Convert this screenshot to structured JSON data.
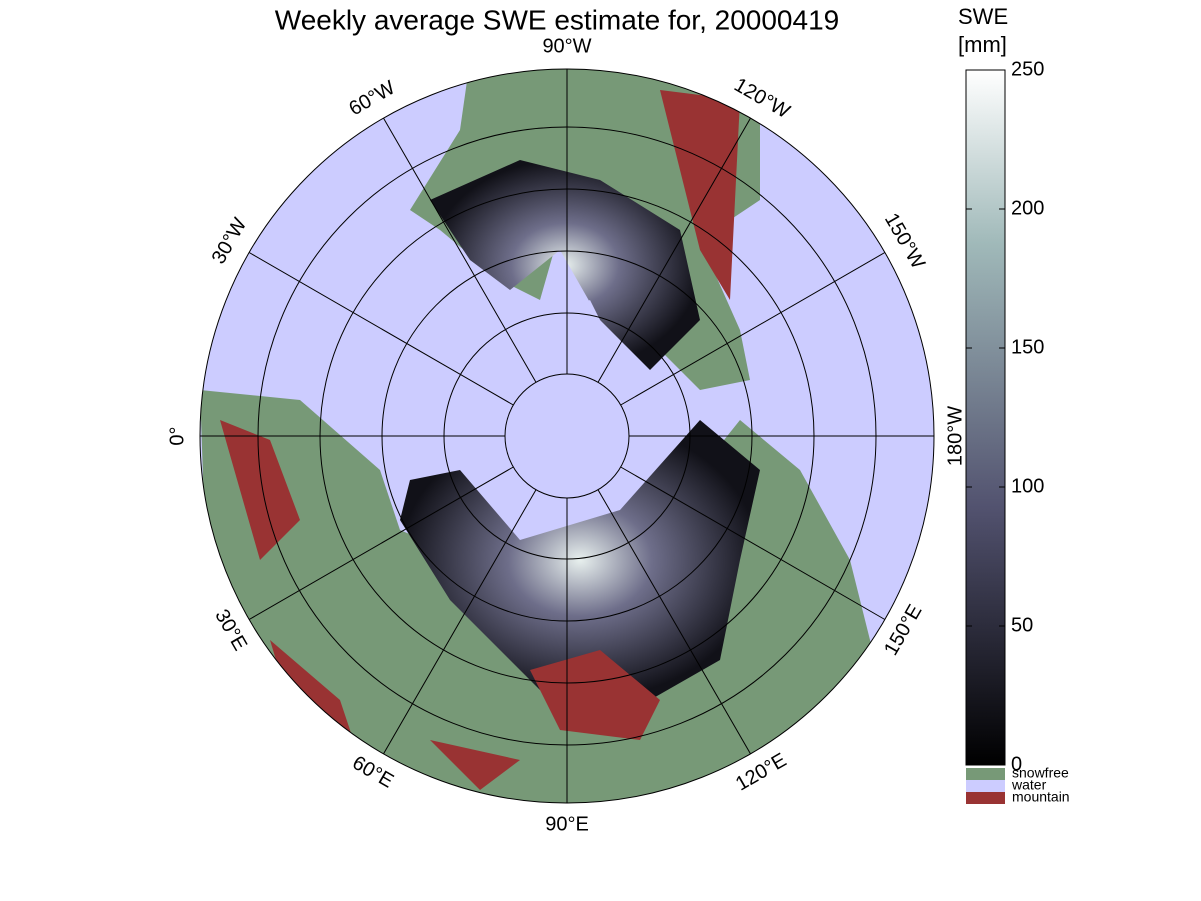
{
  "title": "Weekly average SWE estimate for, 20000419",
  "meridians": [
    {
      "value": -90,
      "label": "90°W"
    },
    {
      "value": -60,
      "label": "60°W"
    },
    {
      "value": -30,
      "label": "30°W"
    },
    {
      "value": 0,
      "label": "0°"
    },
    {
      "value": 30,
      "label": "30°E"
    },
    {
      "value": 60,
      "label": "60°E"
    },
    {
      "value": 90,
      "label": "90°E"
    },
    {
      "value": 120,
      "label": "120°E"
    },
    {
      "value": 150,
      "label": "150°E"
    },
    {
      "value": -180,
      "label": "180°W"
    },
    {
      "value": -150,
      "label": "150°W"
    },
    {
      "value": -120,
      "label": "120°W"
    }
  ],
  "colorbar": {
    "title": [
      "SWE",
      "[mm]"
    ],
    "lim": [
      0,
      250
    ],
    "ticks": [
      0,
      50,
      100,
      150,
      200,
      250
    ]
  },
  "legend": [
    {
      "name": "snowfree",
      "color": "#779977"
    },
    {
      "name": "water",
      "color": "#ccccff"
    },
    {
      "name": "mountain",
      "color": "#993333"
    }
  ]
}
